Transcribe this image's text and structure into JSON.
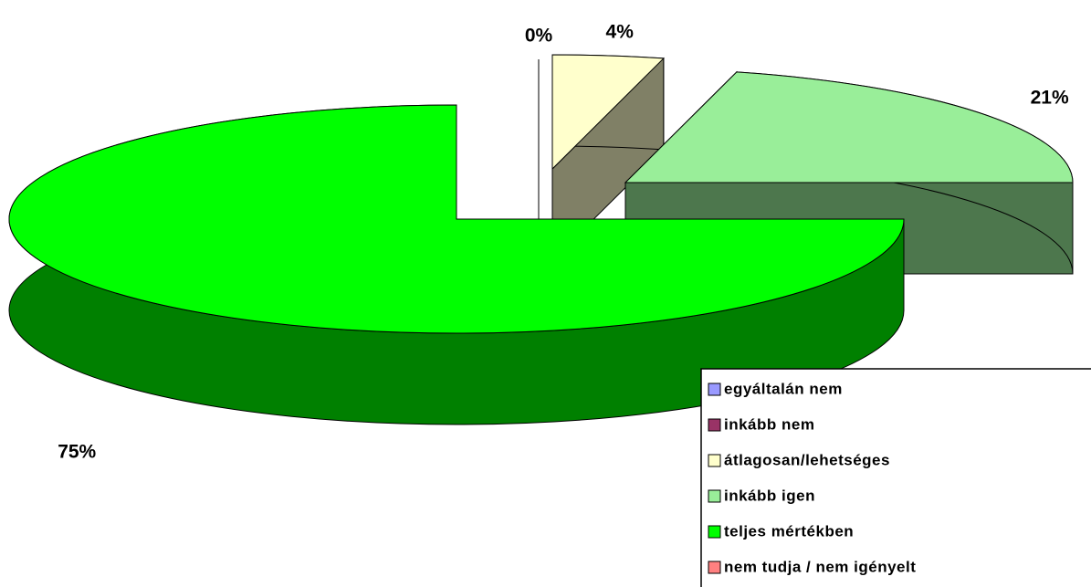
{
  "chart_data": {
    "type": "pie3d",
    "categories": [
      "egyáltalán nem",
      "inkább nem",
      "átlagosan/lehetséges",
      "inkább igen",
      "teljes mértékben",
      "nem tudja / nem igényelt"
    ],
    "values": [
      0,
      0,
      4,
      21,
      75,
      0
    ],
    "value_labels": [
      null,
      "0%",
      "4%",
      "21%",
      "75%",
      null
    ],
    "colors": [
      "#9999ff",
      "#993366",
      "#ffffcc",
      "#99ee99",
      "#00ff00",
      "#ff8080"
    ],
    "legend": "bottom-right"
  }
}
